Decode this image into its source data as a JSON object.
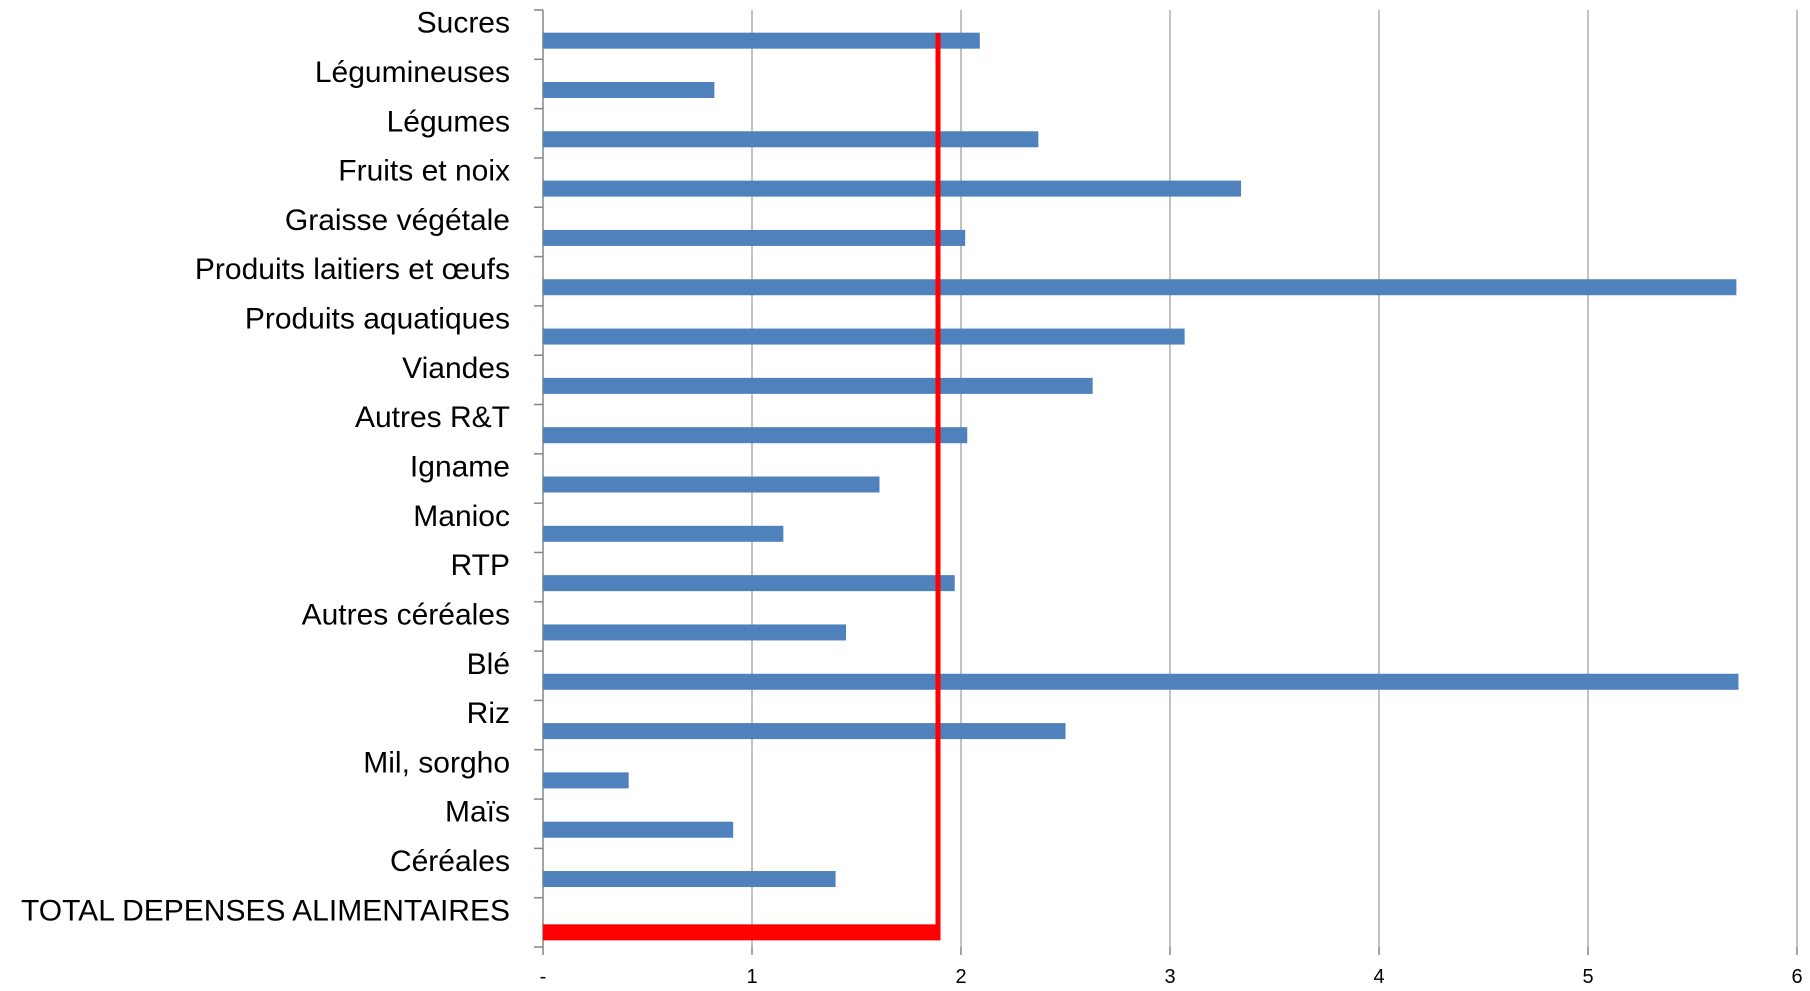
{
  "chart_data": {
    "type": "bar",
    "orientation": "horizontal",
    "title": "",
    "xlabel": "",
    "ylabel": "",
    "xlim": [
      0,
      6
    ],
    "x_ticks": [
      "-",
      "1",
      "2",
      "3",
      "4",
      "5",
      "6"
    ],
    "grid": "vertical",
    "legend": "none",
    "categories": [
      "Sucres",
      "Légumineuses",
      "Légumes",
      "Fruits et noix",
      "Graisse végétale",
      "Produits laitiers et œufs",
      "Produits aquatiques",
      "Viandes",
      "Autres R&T",
      "Igname",
      "Manioc",
      "RTP",
      "Autres céréales",
      "Blé",
      "Riz",
      "Mil, sorgho",
      "Maïs",
      "Céréales",
      "TOTAL DEPENSES ALIMENTAIRES"
    ],
    "values": [
      2.09,
      0.82,
      2.37,
      3.34,
      2.02,
      5.71,
      3.07,
      2.63,
      2.03,
      1.61,
      1.15,
      1.97,
      1.45,
      5.72,
      2.5,
      0.41,
      0.91,
      1.4,
      1.89
    ],
    "reference_line": {
      "value": 1.89,
      "color": "#ff0000"
    },
    "colors": {
      "bar": "#4f81bd",
      "total": "#ff0000",
      "grid": "#868686",
      "axis": "#868686"
    }
  }
}
